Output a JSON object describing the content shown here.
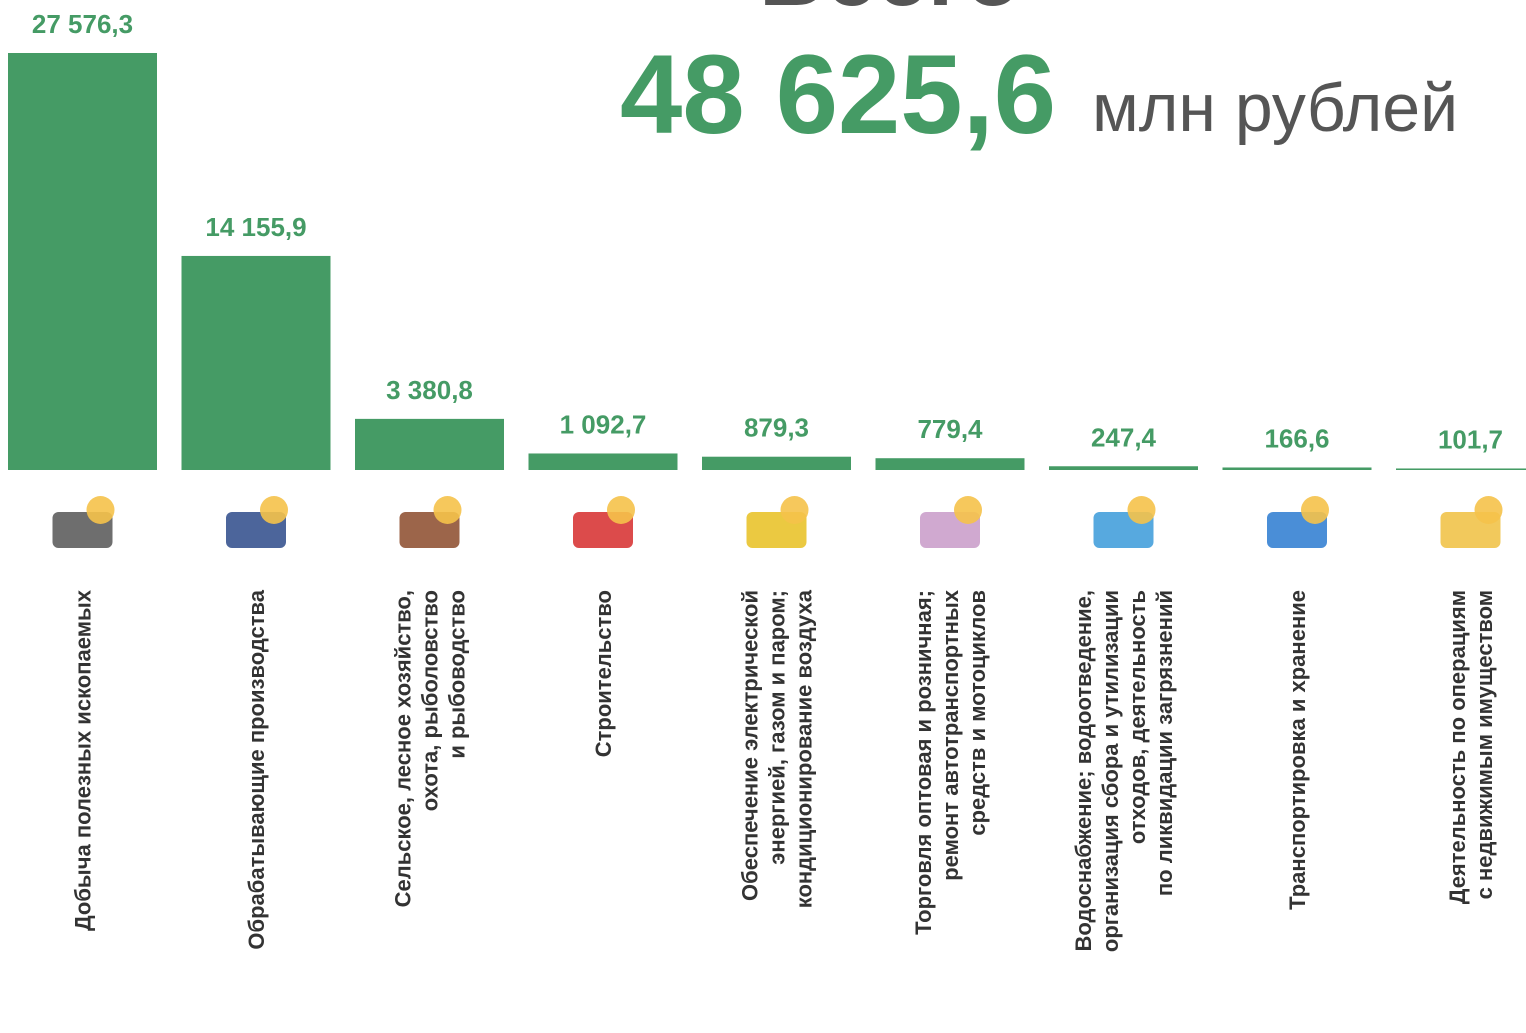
{
  "chart_data": {
    "type": "bar",
    "title": "Всего",
    "total": "48 625,6",
    "unit": "млн рублей",
    "color": "#459b65",
    "categories": [
      "Добыча полезных ископаемых",
      "Обрабатывающие производства",
      "Сельское, лесное хозяйство,\nохота, рыболовство\nи рыбоводство",
      "Строительство",
      "Обеспечение электрической\nэнергией, газом и паром;\nкондиционирование воздуха",
      "Торговля оптовая и розничная;\nремонт автотранспортных\nсредств и мотоциклов",
      "Водоснабжение; водоотведение,\nорганизация сбора и утилизации\nотходов, деятельность\nпо ликвидации загрязнений",
      "Транспортировка и хранение",
      "Деятельность по операциям\nс недвижимым имуществом"
    ],
    "values": [
      27576.3,
      14155.9,
      3380.8,
      1092.7,
      879.3,
      779.4,
      247.4,
      166.6,
      101.7
    ],
    "value_labels": [
      "27 576,3",
      "14 155,9",
      "3 380,8",
      "1 092,7",
      "879,3",
      "779,4",
      "247,4",
      "166,6",
      "101,7"
    ]
  }
}
